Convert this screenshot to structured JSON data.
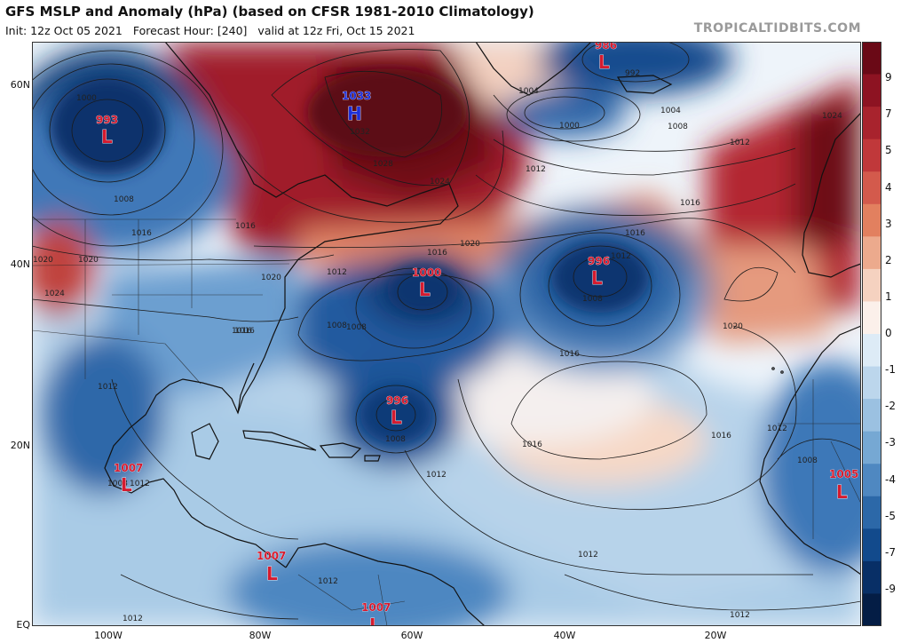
{
  "header": {
    "title": "GFS MSLP and Anomaly (hPa) (based on CFSR 1981-2010 Climatology)",
    "init": "Init: 12z Oct 05 2021",
    "forecast_hour": "Forecast Hour: [240]",
    "valid": "valid at 12z Fri, Oct 15 2021",
    "credit": "TROPICALTIDBITS.COM"
  },
  "axes": {
    "lat_labels": [
      "60N",
      "40N",
      "20N",
      "EQ"
    ],
    "lon_labels": [
      "100W",
      "80W",
      "60W",
      "40W",
      "20W"
    ]
  },
  "colorbar": {
    "labels": [
      "9",
      "7",
      "5",
      "4",
      "3",
      "2",
      "1",
      "0",
      "-1",
      "-2",
      "-3",
      "-4",
      "-5",
      "-7",
      "-9"
    ],
    "colors": {
      "strong_positive": "#7a0d1c",
      "positive": "#e07b5c",
      "neutral": "#fbf4ef",
      "negative": "#6fa4d2",
      "strong_negative": "#0c3d82"
    }
  },
  "pressure_centers": [
    {
      "value": "993",
      "type": "L"
    },
    {
      "value": "1033",
      "type": "H"
    },
    {
      "value": "986",
      "type": "L"
    },
    {
      "value": "1000",
      "type": "L"
    },
    {
      "value": "996",
      "type": "L"
    },
    {
      "value": "996",
      "type": "L"
    },
    {
      "value": "1007",
      "type": "L"
    },
    {
      "value": "1007",
      "type": "L"
    },
    {
      "value": "1007",
      "type": "L"
    },
    {
      "value": "1005",
      "type": "L"
    }
  ],
  "contour_labels": [
    "1000",
    "1008",
    "1016",
    "1016",
    "1020",
    "1024",
    "1020",
    "1032",
    "1028",
    "1024",
    "1020",
    "1016",
    "1020",
    "1016",
    "1012",
    "1008",
    "1004",
    "1000",
    "992",
    "1004",
    "1008",
    "1012",
    "1012",
    "1016",
    "1024",
    "1016",
    "1012",
    "1008",
    "1016",
    "1008",
    "1016",
    "1020",
    "1016",
    "1016",
    "1012",
    "1012",
    "1012",
    "1008",
    "1012",
    "1012",
    "1012",
    "1008",
    "1012",
    "1012",
    "1008"
  ]
}
